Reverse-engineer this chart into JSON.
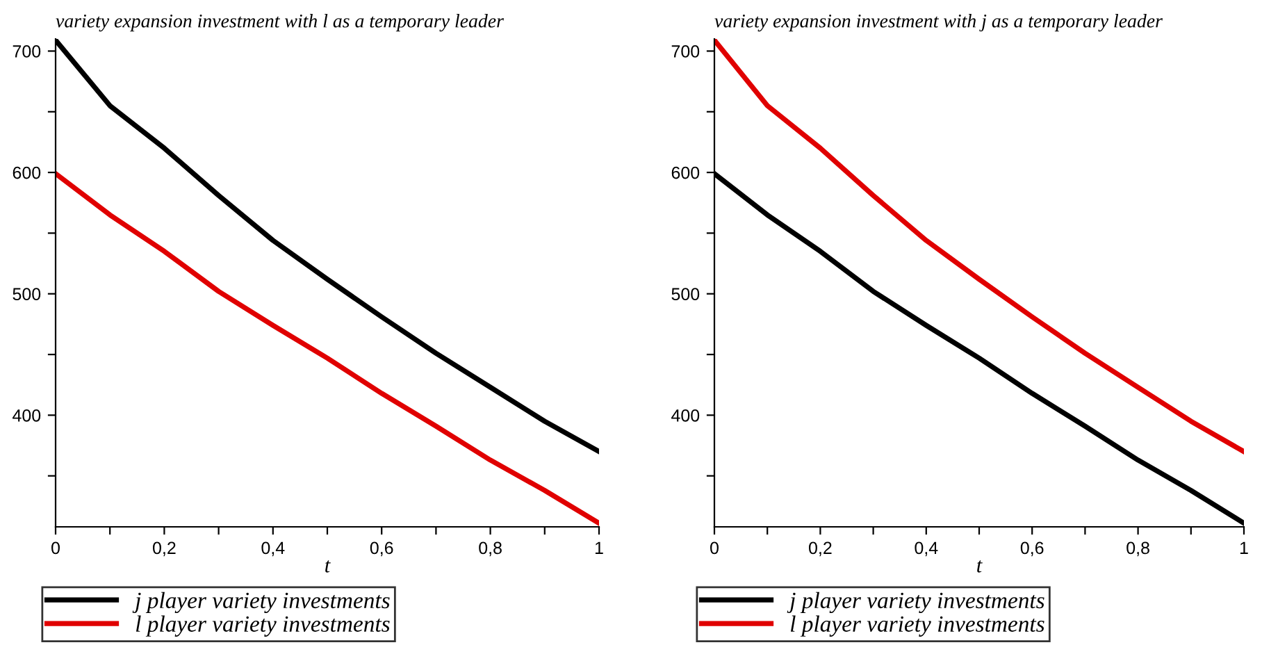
{
  "chart_data": [
    {
      "type": "line",
      "title": "variety expansion investment with l as a temporary leader",
      "xlabel": "t",
      "x": [
        0,
        0.1,
        0.2,
        0.3,
        0.4,
        0.5,
        0.6,
        0.7,
        0.8,
        0.9,
        1
      ],
      "series": [
        {
          "name": "j player variety investments",
          "color": "#000000",
          "values": [
            709,
            655,
            620,
            581,
            544,
            512,
            481,
            451,
            423,
            395,
            370
          ]
        },
        {
          "name": "l player variety investments",
          "color": "#e00000",
          "values": [
            599,
            565,
            535,
            502,
            474,
            447,
            418,
            391,
            363,
            338,
            311
          ]
        }
      ],
      "xlim": [
        0,
        1
      ],
      "ylim": [
        308,
        710
      ],
      "xticks": [
        0,
        {
          "value": 0.1,
          "label": null
        },
        {
          "value": 0.2,
          "label": "0,2"
        },
        {
          "value": 0.3,
          "label": null
        },
        {
          "value": 0.4,
          "label": "0,4"
        },
        {
          "value": 0.5,
          "label": null
        },
        {
          "value": 0.6,
          "label": "0,6"
        },
        {
          "value": 0.7,
          "label": null
        },
        {
          "value": 0.8,
          "label": "0,8"
        },
        {
          "value": 0.9,
          "label": null
        },
        1
      ],
      "yticks": [
        {
          "value": 350,
          "label": null
        },
        400,
        {
          "value": 450,
          "label": null
        },
        500,
        {
          "value": 550,
          "label": null
        },
        600,
        {
          "value": 650,
          "label": null
        },
        700
      ],
      "grid": false,
      "legend": "bottom",
      "line_style": "solid",
      "marker": "none"
    },
    {
      "type": "line",
      "title": "variety expansion investment with j as a temporary leader",
      "xlabel": "t",
      "x": [
        0,
        0.1,
        0.2,
        0.3,
        0.4,
        0.5,
        0.6,
        0.7,
        0.8,
        0.9,
        1
      ],
      "series": [
        {
          "name": "j player variety investments",
          "color": "#000000",
          "values": [
            599,
            565,
            535,
            502,
            474,
            447,
            418,
            391,
            363,
            338,
            311
          ]
        },
        {
          "name": "l player variety investments",
          "color": "#e00000",
          "values": [
            709,
            655,
            620,
            581,
            544,
            512,
            481,
            451,
            423,
            395,
            370
          ]
        }
      ],
      "xlim": [
        0,
        1
      ],
      "ylim": [
        308,
        710
      ],
      "xticks": [
        0,
        {
          "value": 0.1,
          "label": null
        },
        {
          "value": 0.2,
          "label": "0,2"
        },
        {
          "value": 0.3,
          "label": null
        },
        {
          "value": 0.4,
          "label": "0,4"
        },
        {
          "value": 0.5,
          "label": null
        },
        {
          "value": 0.6,
          "label": "0,6"
        },
        {
          "value": 0.7,
          "label": null
        },
        {
          "value": 0.8,
          "label": "0,8"
        },
        {
          "value": 0.9,
          "label": null
        },
        1
      ],
      "yticks": [
        {
          "value": 350,
          "label": null
        },
        400,
        {
          "value": 450,
          "label": null
        },
        500,
        {
          "value": 550,
          "label": null
        },
        600,
        {
          "value": 650,
          "label": null
        },
        700
      ],
      "grid": false,
      "legend": "bottom",
      "line_style": "solid",
      "marker": "none"
    }
  ]
}
